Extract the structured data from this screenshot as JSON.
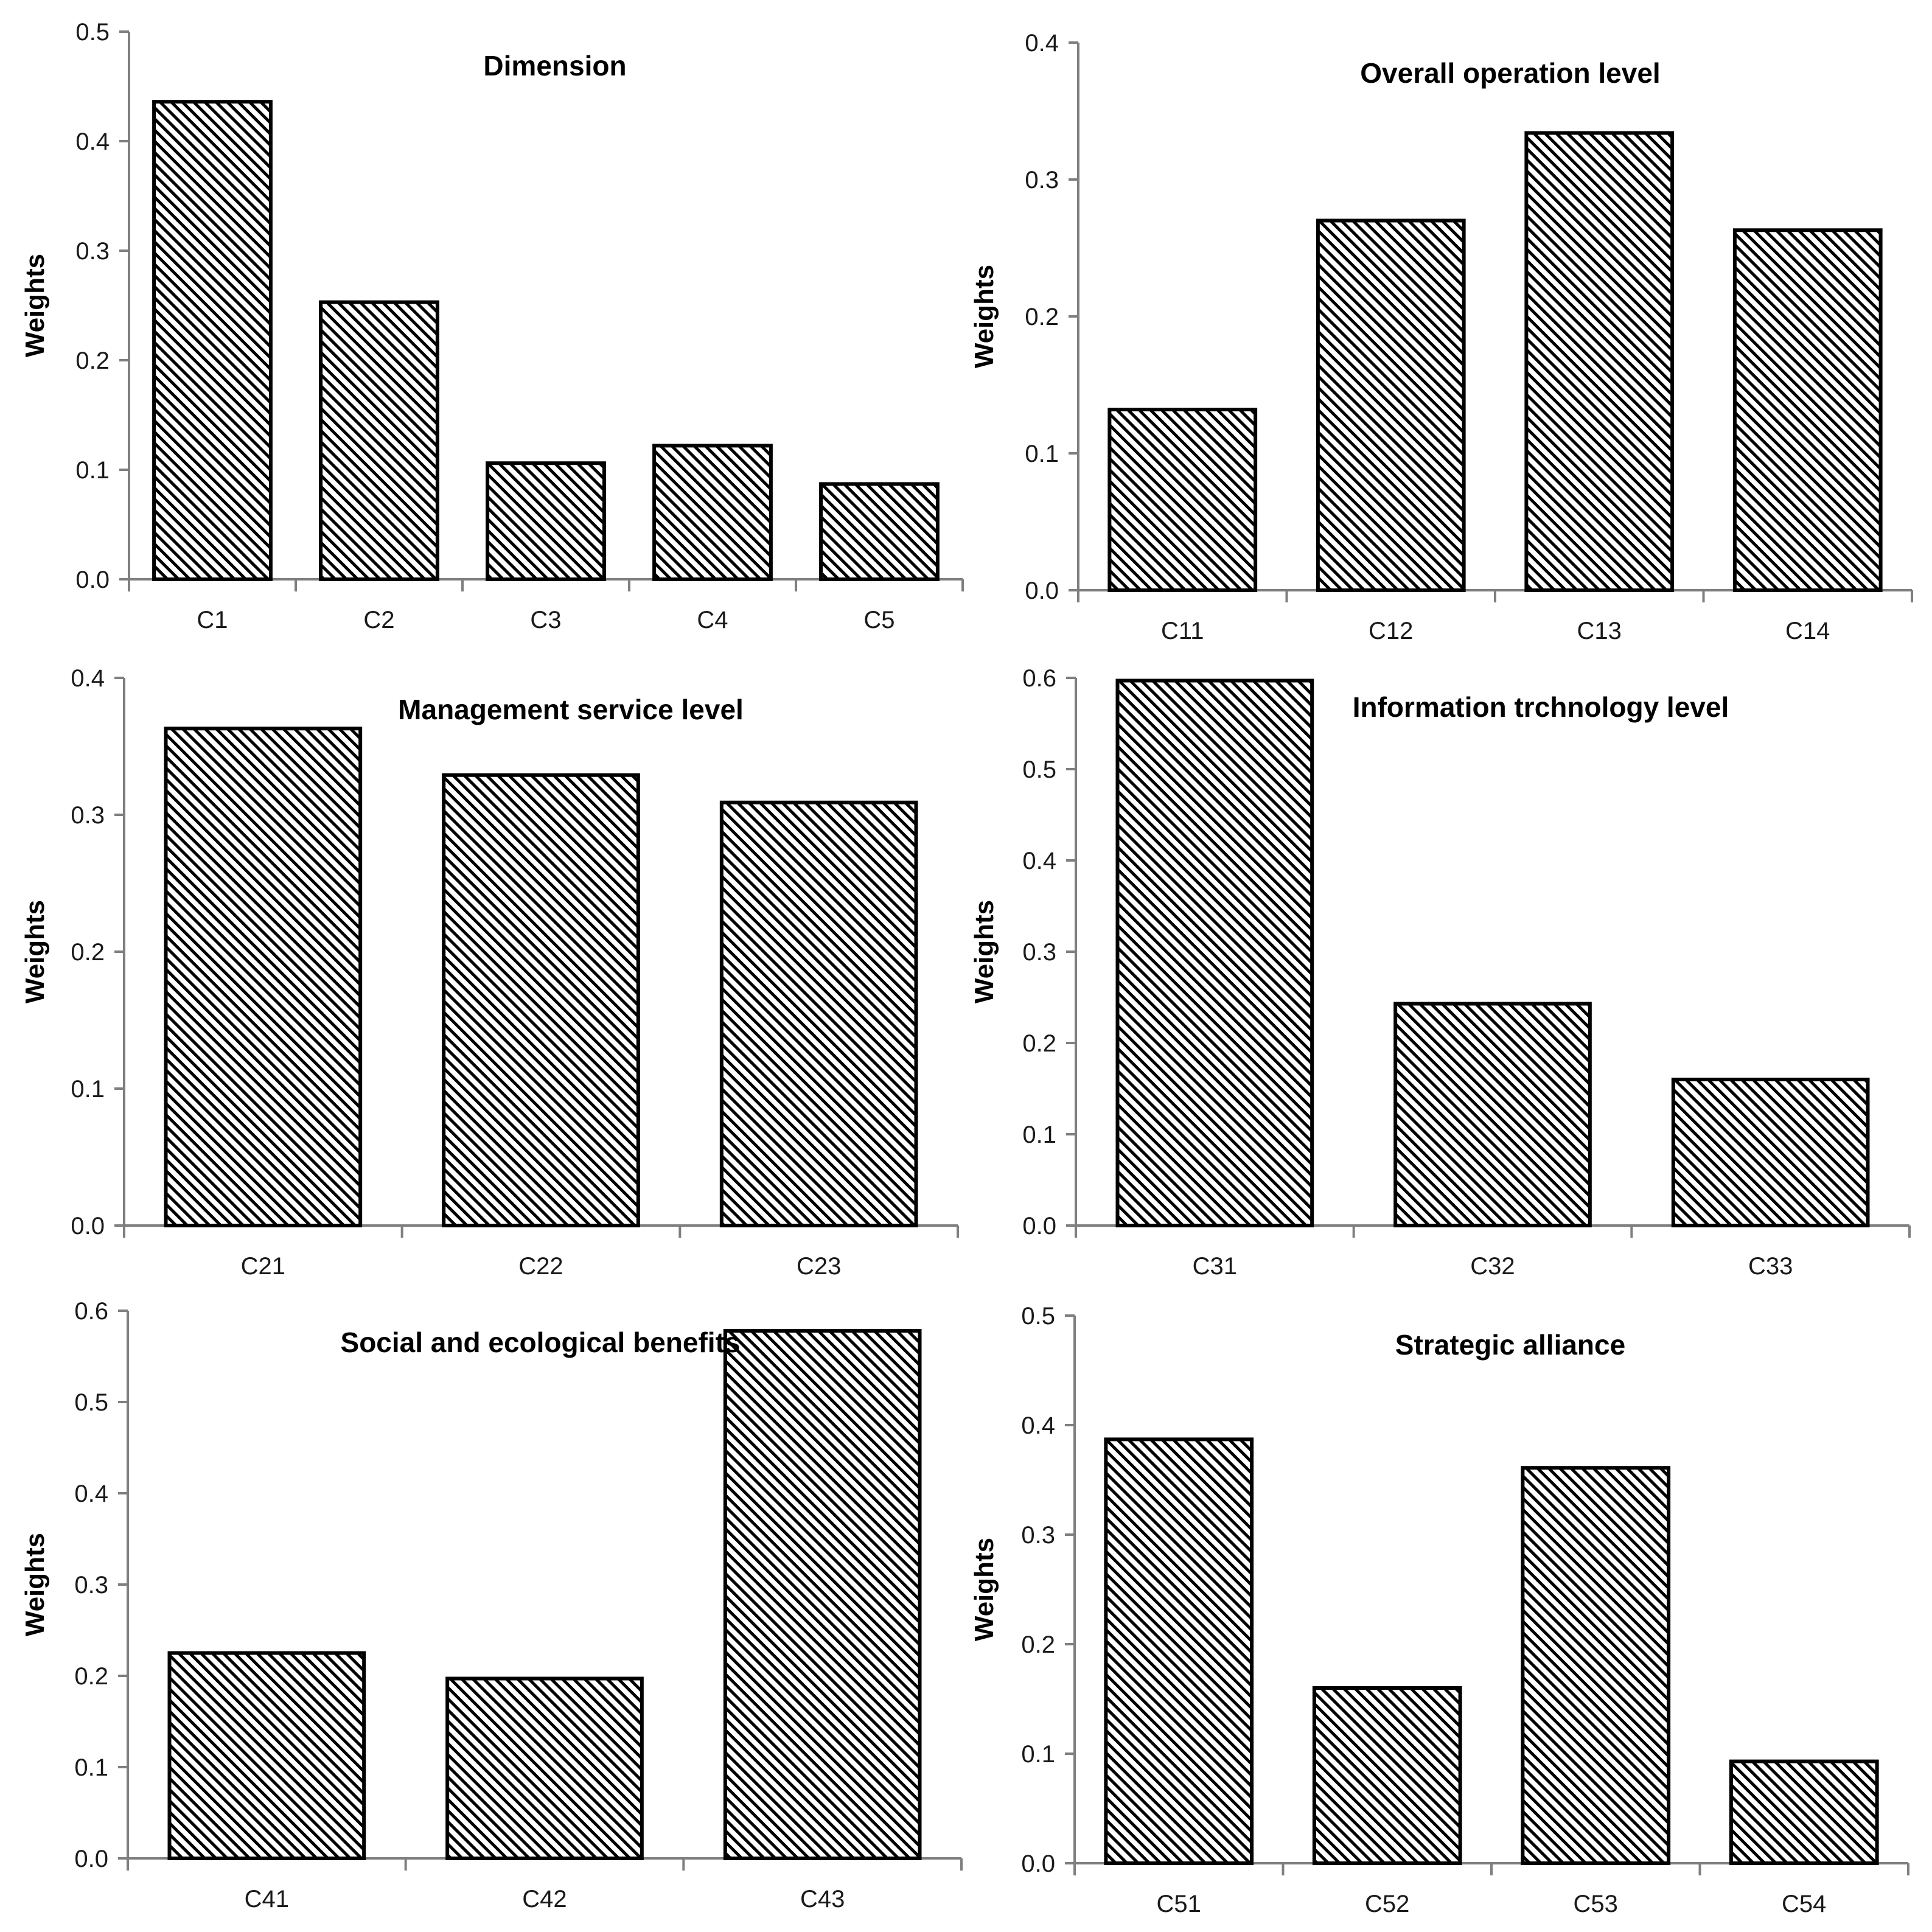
{
  "colors": {
    "bar_fill": "#ffffff",
    "bar_hatch": "#000000",
    "bar_stroke": "#000000",
    "axis": "#7f7f7f",
    "text": "#1a1a1a"
  },
  "chart_data": [
    {
      "type": "bar",
      "title": "Dimension",
      "ylabel": "Weights",
      "xlabel": "",
      "categories": [
        "C1",
        "C2",
        "C3",
        "C4",
        "C5"
      ],
      "values": [
        0.436,
        0.253,
        0.106,
        0.122,
        0.087
      ],
      "ylim": [
        0,
        0.5
      ],
      "yticks": [
        "0.0",
        "0.1",
        "0.2",
        "0.3",
        "0.4",
        "0.5"
      ],
      "grid": false,
      "legend": "none"
    },
    {
      "type": "bar",
      "title": "Overall operation level",
      "ylabel": "Weights",
      "xlabel": "",
      "categories": [
        "C11",
        "C12",
        "C13",
        "C14"
      ],
      "values": [
        0.132,
        0.27,
        0.334,
        0.263
      ],
      "ylim": [
        0,
        0.4
      ],
      "yticks": [
        "0.0",
        "0.1",
        "0.2",
        "0.3",
        "0.4"
      ],
      "grid": false,
      "legend": "none"
    },
    {
      "type": "bar",
      "title": "Management service level",
      "ylabel": "Weights",
      "xlabel": "",
      "categories": [
        "C21",
        "C22",
        "C23"
      ],
      "values": [
        0.363,
        0.329,
        0.309
      ],
      "ylim": [
        0,
        0.4
      ],
      "yticks": [
        "0.0",
        "0.1",
        "0.2",
        "0.3",
        "0.4"
      ],
      "grid": false,
      "legend": "none"
    },
    {
      "type": "bar",
      "title": "Information trchnology level",
      "ylabel": "Weights",
      "xlabel": "",
      "categories": [
        "C31",
        "C32",
        "C33"
      ],
      "values": [
        0.597,
        0.243,
        0.16
      ],
      "ylim": [
        0,
        0.6
      ],
      "yticks": [
        "0.0",
        "0.1",
        "0.2",
        "0.3",
        "0.4",
        "0.5",
        "0.6"
      ],
      "grid": false,
      "legend": "none"
    },
    {
      "type": "bar",
      "title": "Social and ecological benefits",
      "ylabel": "Weights",
      "xlabel": "",
      "categories": [
        "C41",
        "C42",
        "C43"
      ],
      "values": [
        0.225,
        0.197,
        0.578
      ],
      "ylim": [
        0,
        0.6
      ],
      "yticks": [
        "0.0",
        "0.1",
        "0.2",
        "0.3",
        "0.4",
        "0.5",
        "0.6"
      ],
      "grid": false,
      "legend": "none"
    },
    {
      "type": "bar",
      "title": "Strategic alliance",
      "ylabel": "Weights",
      "xlabel": "",
      "categories": [
        "C51",
        "C52",
        "C53",
        "C54"
      ],
      "values": [
        0.387,
        0.16,
        0.361,
        0.093
      ],
      "ylim": [
        0,
        0.5
      ],
      "yticks": [
        "0.0",
        "0.1",
        "0.2",
        "0.3",
        "0.4",
        "0.5"
      ],
      "grid": false,
      "legend": "none"
    }
  ]
}
